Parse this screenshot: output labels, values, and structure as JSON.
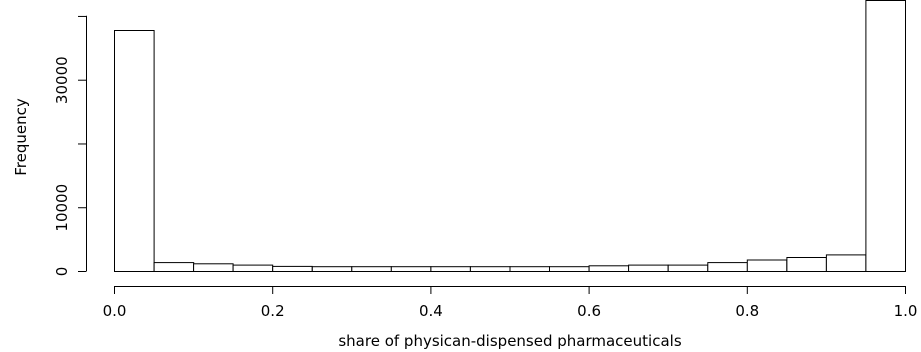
{
  "chart_data": {
    "type": "bar",
    "title": "",
    "xlabel": "share of physican-dispensed pharmaceuticals",
    "ylabel": "Frequency",
    "bin_edges": [
      0.0,
      0.05,
      0.1,
      0.15,
      0.2,
      0.25,
      0.3,
      0.35,
      0.4,
      0.45,
      0.5,
      0.55,
      0.6,
      0.65,
      0.7,
      0.75,
      0.8,
      0.85,
      0.9,
      0.95,
      1.0
    ],
    "values": [
      37800,
      1400,
      1200,
      1000,
      800,
      750,
      750,
      750,
      750,
      750,
      750,
      750,
      900,
      1000,
      1000,
      1400,
      1800,
      2200,
      2600,
      42500
    ],
    "xlim": [
      0,
      1
    ],
    "ylim": [
      0,
      42500
    ],
    "xticks": [
      0.0,
      0.2,
      0.4,
      0.6,
      0.8,
      1.0
    ],
    "xtick_labels": [
      "0.0",
      "0.2",
      "0.4",
      "0.6",
      "0.8",
      "1.0"
    ],
    "yticks": [
      0,
      10000,
      20000,
      30000
    ],
    "ytick_labels": [
      "0",
      "10000",
      "",
      "30000"
    ],
    "grid": false,
    "legend": "none"
  }
}
